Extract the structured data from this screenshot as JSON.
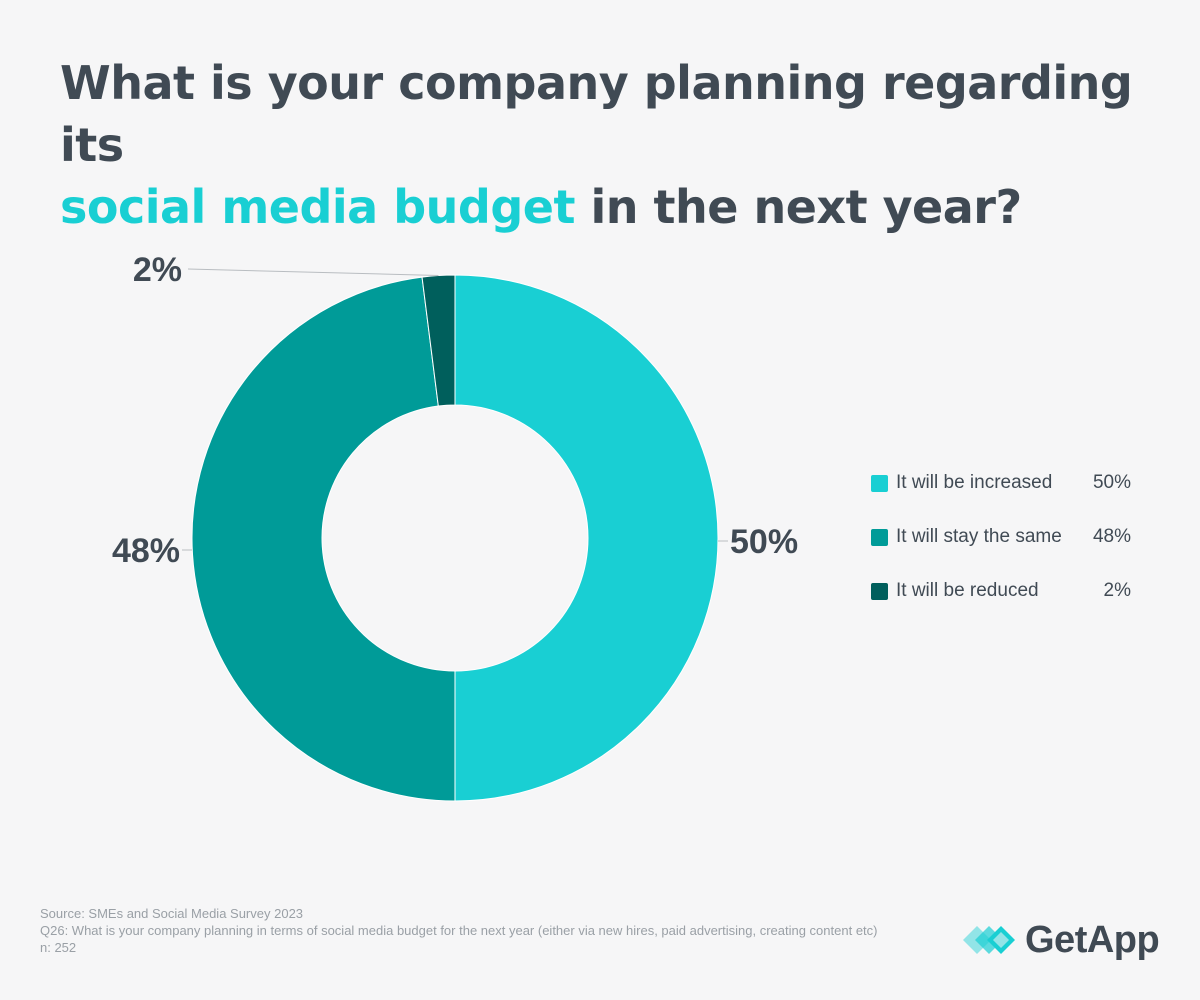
{
  "title": {
    "part1": "What is your company planning regarding its",
    "highlight": "social media budget",
    "part2": "in the next year?"
  },
  "chart_data": {
    "type": "pie",
    "subtype": "donut",
    "categories": [
      "It will be increased",
      "It will stay the same",
      "It will be reduced"
    ],
    "values": [
      50,
      48,
      2
    ],
    "unit": "%",
    "value_labels": [
      "50%",
      "48%",
      "2%"
    ],
    "colors": [
      "#19cfd3",
      "#009b98",
      "#005f5c"
    ],
    "legend_placement": "right"
  },
  "legend": [
    {
      "label": "It will be increased",
      "value": "50%"
    },
    {
      "label": "It will stay the same",
      "value": "48%"
    },
    {
      "label": "It will be reduced",
      "value": "2%"
    }
  ],
  "footer": {
    "source": "Source: SMEs and Social Media Survey 2023",
    "question": "Q26: What is your company planning in terms of social media budget for the next year (either via new hires, paid advertising, creating content etc)",
    "n": "n: 252"
  },
  "brand": {
    "name": "GetApp",
    "color": "#19cfd3"
  },
  "colors": {
    "text": "#404a54",
    "accent": "#19cfd3",
    "background": "#f6f6f7"
  }
}
